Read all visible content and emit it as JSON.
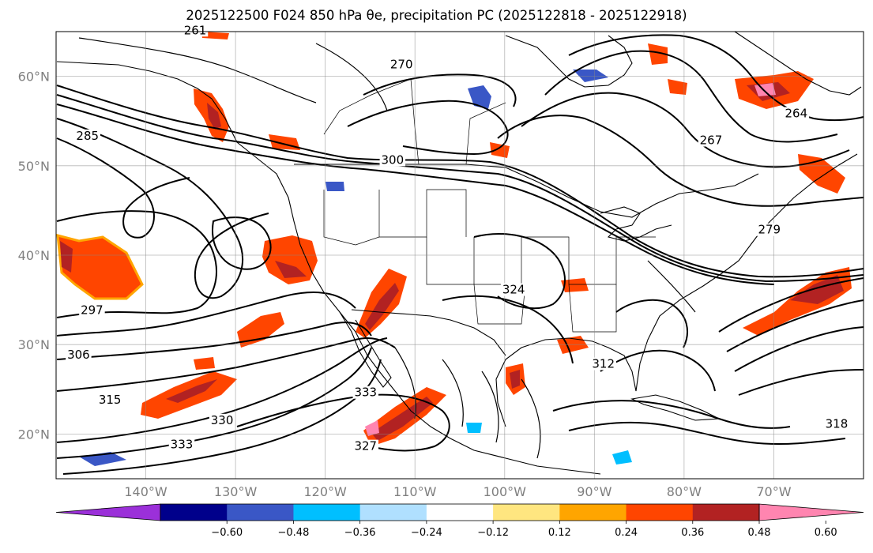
{
  "title": "2025122500 F024 850 hPa θe, precipitation PC (2025122818 - 2025122918)",
  "map": {
    "projection": "PlateCarree",
    "lon_range": [
      -150,
      -60
    ],
    "lat_range": [
      15,
      65
    ],
    "lat_ticks": [
      {
        "lat": 60,
        "label": "60°N"
      },
      {
        "lat": 50,
        "label": "50°N"
      },
      {
        "lat": 40,
        "label": "40°N"
      },
      {
        "lat": 30,
        "label": "30°N"
      },
      {
        "lat": 20,
        "label": "20°N"
      }
    ],
    "lon_ticks": [
      {
        "lon": -140,
        "label": "140°W"
      },
      {
        "lon": -130,
        "label": "130°W"
      },
      {
        "lon": -120,
        "label": "120°W"
      },
      {
        "lon": -110,
        "label": "110°W"
      },
      {
        "lon": -100,
        "label": "100°W"
      },
      {
        "lon": -90,
        "label": "90°W"
      },
      {
        "lon": -80,
        "label": "80°W"
      },
      {
        "lon": -70,
        "label": "70°W"
      }
    ],
    "gridlines": true
  },
  "contour_labels": [
    {
      "text": "285",
      "lon": -146.5,
      "lat": 53.0
    },
    {
      "text": "297",
      "lon": -146.0,
      "lat": 33.5
    },
    {
      "text": "306",
      "lon": -147.5,
      "lat": 28.5
    },
    {
      "text": "300",
      "lon": -112.5,
      "lat": 50.3
    },
    {
      "text": "270",
      "lon": -111.5,
      "lat": 61.0
    },
    {
      "text": "324",
      "lon": -99.0,
      "lat": 35.8
    },
    {
      "text": "333",
      "lon": -115.5,
      "lat": 24.3
    },
    {
      "text": "330",
      "lon": -131.5,
      "lat": 21.2
    },
    {
      "text": "333",
      "lon": -136.0,
      "lat": 18.5
    },
    {
      "text": "327",
      "lon": -115.5,
      "lat": 18.3
    },
    {
      "text": "318",
      "lon": -63.0,
      "lat": 20.8
    },
    {
      "text": "279",
      "lon": -70.5,
      "lat": 42.5
    },
    {
      "text": "312",
      "lon": -89.0,
      "lat": 27.5
    },
    {
      "text": "264",
      "lon": -67.5,
      "lat": 55.5
    },
    {
      "text": "267",
      "lon": -77.0,
      "lat": 52.5
    },
    {
      "text": "261",
      "lon": -134.5,
      "lat": 64.8
    },
    {
      "text": "315",
      "lon": -144.0,
      "lat": 23.5
    }
  ],
  "colorbar": {
    "boundaries": [
      -0.72,
      -0.6,
      -0.48,
      -0.36,
      -0.24,
      -0.12,
      0.12,
      0.24,
      0.36,
      0.48,
      0.6,
      0.72
    ],
    "colors": [
      "#9b30d9",
      "#00008b",
      "#3a57c6",
      "#00bfff",
      "#b0e0ff",
      "#ffffff",
      "#ffe680",
      "#ffa500",
      "#ff4500",
      "#b22222",
      "#ff85b0"
    ],
    "tick_labels": [
      "−0.60",
      "−0.48",
      "−0.36",
      "−0.24",
      "−0.12",
      "0.12",
      "0.24",
      "0.36",
      "0.48",
      "0.60"
    ],
    "extend": "both"
  }
}
